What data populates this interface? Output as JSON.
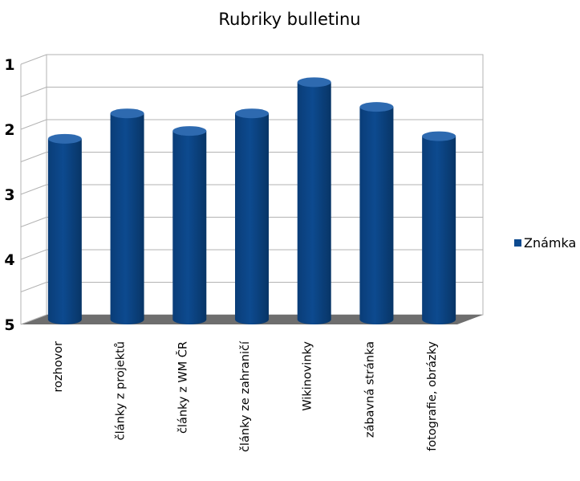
{
  "chart_data": {
    "type": "bar",
    "title": "Rubriky bulletinu",
    "categories": [
      "rozhovor",
      "články z projektů",
      "články z WM ČR",
      "články ze zahraničí",
      "Wikinovinky",
      "zábavná stránka",
      "fotografie,  obrázky"
    ],
    "series": [
      {
        "name": "Známka",
        "values": [
          2.22,
          1.83,
          2.1,
          1.83,
          1.35,
          1.73,
          2.18
        ]
      }
    ],
    "yticks": [
      "1",
      "2",
      "3",
      "4",
      "5"
    ],
    "ylim": [
      1,
      5
    ],
    "y_inverted": true,
    "xlabel": "",
    "ylabel": "",
    "grid": true,
    "legend": "right",
    "bar_style": "3d-cylinder",
    "colors": {
      "bar": "#0d4a8f",
      "bar_top": "#2e6ab0",
      "floor": "#6e6e6e",
      "grid": "#b3b3b3"
    }
  }
}
